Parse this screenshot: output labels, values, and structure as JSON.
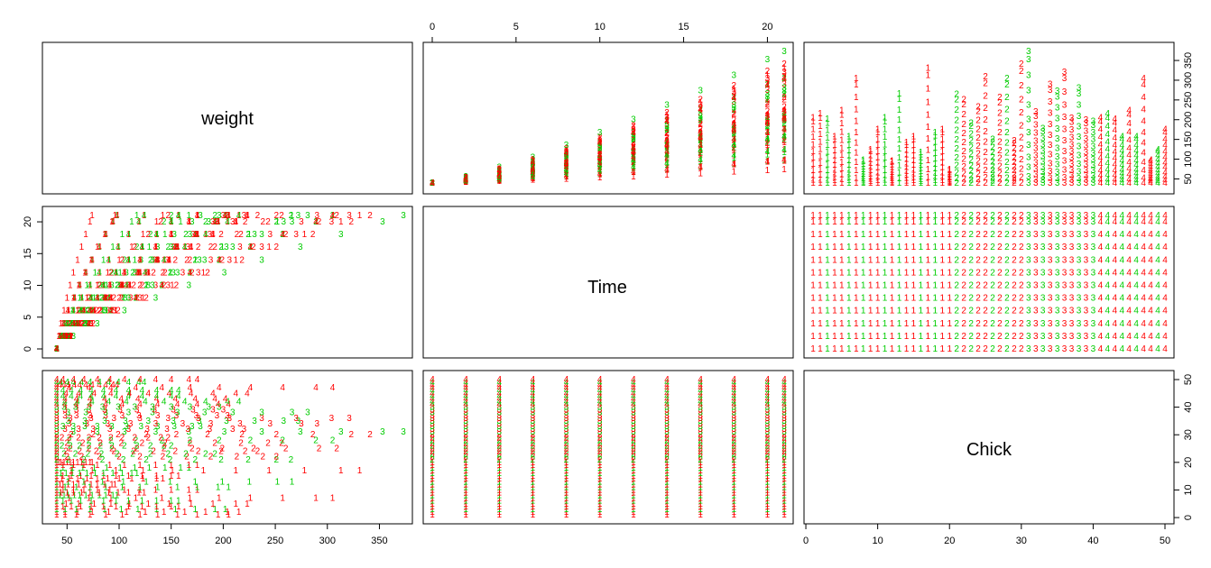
{
  "chart_data": {
    "type": "scatter",
    "subtype": "pairs",
    "variables": [
      "weight",
      "Time",
      "Chick"
    ],
    "point_label_key": "Diet",
    "colors": {
      "low": "#ff0000",
      "high": "#00cc00",
      "axis": "#000000"
    },
    "high_color_rule": "Diet label drawn green when the point falls in the upper half of the sampled chicks, red otherwise",
    "axes": {
      "weight": {
        "ticks": [
          50,
          100,
          150,
          200,
          250,
          300,
          350
        ],
        "range": [
          35,
          373
        ]
      },
      "Time": {
        "ticks": [
          0,
          5,
          10,
          15,
          20
        ],
        "range": [
          0,
          21
        ]
      },
      "Chick": {
        "ticks": [
          0,
          10,
          20,
          30,
          40,
          50
        ],
        "range": [
          1,
          50
        ]
      }
    },
    "green_chicks": [
      3,
      6,
      8,
      11,
      13,
      16,
      18,
      21,
      23,
      26,
      28,
      31,
      33,
      35,
      38,
      40,
      42,
      44,
      46,
      49
    ],
    "chick_weights_day21": [
      205,
      215,
      202,
      157,
      223,
      157,
      305,
      98,
      124,
      175,
      205,
      96,
      266,
      142,
      157,
      117,
      331,
      167,
      175,
      74,
      265,
      251,
      192,
      233,
      309,
      150,
      256,
      305,
      147,
      341,
      373,
      220,
      178,
      290,
      272,
      321,
      204,
      281,
      200,
      196
    ],
    "time_points": [
      0,
      2,
      4,
      6,
      8,
      10,
      12,
      14,
      16,
      18,
      20,
      21
    ],
    "diets": [
      {
        "diet": "1",
        "chicks": [
          1,
          2,
          3,
          4,
          5,
          6,
          7,
          8,
          9,
          10,
          11,
          12,
          13,
          14,
          15,
          16,
          17,
          18,
          19,
          20
        ]
      },
      {
        "diet": "2",
        "chicks": [
          21,
          22,
          23,
          24,
          25,
          26,
          27,
          28,
          29,
          30
        ]
      },
      {
        "diet": "3",
        "chicks": [
          31,
          32,
          33,
          34,
          35,
          36,
          37,
          38,
          39,
          40
        ]
      },
      {
        "diet": "4",
        "chicks": [
          41,
          42,
          43,
          44,
          45,
          46,
          47,
          48,
          49,
          50
        ]
      }
    ]
  }
}
